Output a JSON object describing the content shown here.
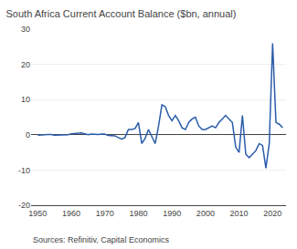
{
  "chart_data": {
    "type": "line",
    "title": "South Africa Current Account Balance ($bn, annual)",
    "annotations": [
      "Sources: Refinitiv, Capital Economics"
    ],
    "color": "#2a5caa",
    "grid": true,
    "xlim": [
      1948,
      2024
    ],
    "xticks": [
      1950,
      1960,
      1970,
      1980,
      1990,
      2000,
      2010,
      2020
    ],
    "ylim": [
      -20,
      30
    ],
    "yticks": [
      -20,
      -10,
      0,
      10,
      20,
      30
    ],
    "x": [
      1950,
      1951,
      1952,
      1953,
      1954,
      1955,
      1956,
      1957,
      1958,
      1959,
      1960,
      1961,
      1962,
      1963,
      1964,
      1965,
      1966,
      1967,
      1968,
      1969,
      1970,
      1971,
      1972,
      1973,
      1974,
      1975,
      1976,
      1977,
      1978,
      1979,
      1980,
      1981,
      1982,
      1983,
      1984,
      1985,
      1986,
      1987,
      1988,
      1989,
      1990,
      1991,
      1992,
      1993,
      1994,
      1995,
      1996,
      1997,
      1998,
      1999,
      2000,
      2001,
      2002,
      2003,
      2004,
      2005,
      2006,
      2007,
      2008,
      2009,
      2010,
      2011,
      2012,
      2013,
      2014,
      2015,
      2016,
      2017,
      2018,
      2019,
      2020,
      2021,
      2022,
      2023
    ],
    "values": [
      -0.1,
      -0.1,
      -0.0,
      0.1,
      0.1,
      -0.1,
      -0.1,
      -0.1,
      -0.0,
      -0.0,
      0.3,
      0.4,
      0.5,
      0.5,
      0.3,
      0.0,
      0.2,
      0.1,
      0.1,
      0.2,
      0.2,
      -0.2,
      -0.3,
      -0.3,
      -0.8,
      -1.2,
      -0.8,
      1.5,
      1.5,
      1.8,
      3.5,
      -2.5,
      -1.0,
      1.5,
      -0.5,
      -2.5,
      2.5,
      8.5,
      8.0,
      5.5,
      4.0,
      5.5,
      4.0,
      2.0,
      1.5,
      3.5,
      4.5,
      5.0,
      2.5,
      1.5,
      1.5,
      2.0,
      2.5,
      2.0,
      3.5,
      4.5,
      5.5,
      4.5,
      3.5,
      -3.5,
      -5.0,
      5.5,
      -5.5,
      -6.5,
      -5.5,
      -4.5,
      -2.5,
      -3.0,
      -9.5,
      -2.5,
      26.0,
      3.5,
      3.0,
      2.0
    ]
  }
}
